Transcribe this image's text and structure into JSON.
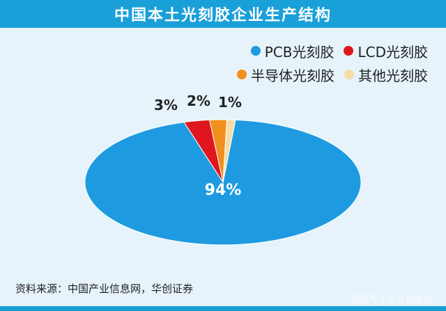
{
  "header": {
    "title": "中国本土光刻胶企业生产结构"
  },
  "chart_data": {
    "type": "pie",
    "title": "中国本土光刻胶企业生产结构",
    "slices": [
      {
        "name": "PCB光刻胶",
        "value": 94,
        "label": "94%",
        "color": "#1e9be0"
      },
      {
        "name": "LCD光刻胶",
        "value": 3,
        "label": "3%",
        "color": "#e0161e"
      },
      {
        "name": "半导体光刻胶",
        "value": 2,
        "label": "2%",
        "color": "#f0901e"
      },
      {
        "name": "其他光刻胶",
        "value": 1,
        "label": "1%",
        "color": "#f7dca8"
      }
    ],
    "legend_position": "top-right"
  },
  "footer": {
    "source": "资料来源：中国产业信息网，华创证券",
    "watermark": "凤凰号 | 元芳说投资"
  }
}
